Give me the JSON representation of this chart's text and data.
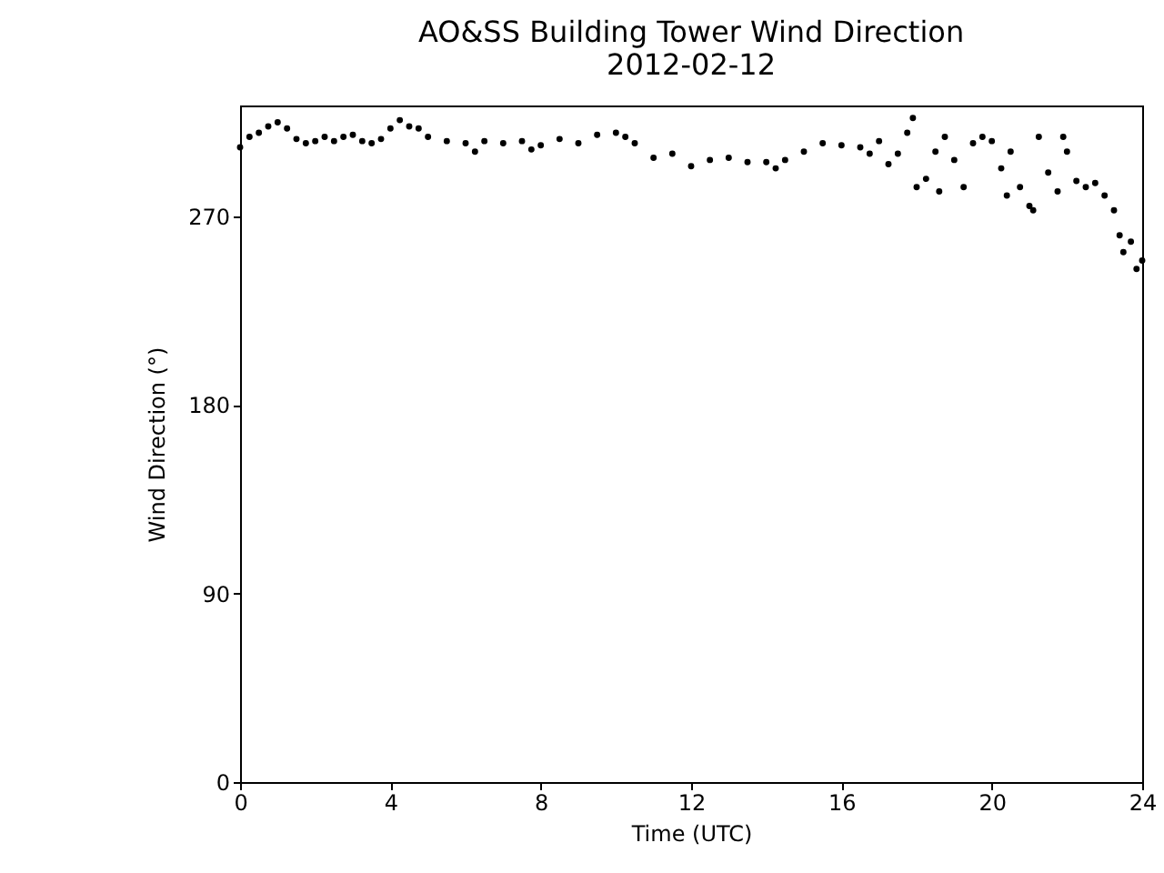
{
  "chart_data": {
    "type": "scatter",
    "title": "AO&SS Building Tower Wind Direction",
    "subtitle": "2012-02-12",
    "xlabel": "Time (UTC)",
    "ylabel": "Wind Direction (°)",
    "xlim": [
      0,
      24
    ],
    "xticks": [
      0,
      4,
      8,
      12,
      16,
      20,
      24
    ],
    "ylim": [
      0,
      323
    ],
    "yticks": [
      0,
      90,
      180,
      270
    ],
    "grid": false,
    "marker": "circle",
    "x": [
      0,
      0.25,
      0.5,
      0.75,
      1,
      1.25,
      1.5,
      1.75,
      2,
      2.25,
      2.5,
      2.75,
      3,
      3.25,
      3.5,
      3.75,
      4,
      4.25,
      4.5,
      4.75,
      5,
      5.5,
      6,
      6.25,
      6.5,
      7,
      7.5,
      7.75,
      8,
      8.5,
      9,
      9.5,
      10,
      10.25,
      10.5,
      11,
      11.5,
      12,
      12.5,
      13,
      13.5,
      14,
      14.25,
      14.5,
      15,
      15.5,
      16,
      16.5,
      16.75,
      17,
      17.25,
      17.5,
      17.75,
      17.9,
      18,
      18.25,
      18.5,
      18.6,
      18.75,
      19,
      19.25,
      19.5,
      19.75,
      20,
      20.25,
      20.4,
      20.5,
      20.75,
      21,
      21.1,
      21.25,
      21.5,
      21.75,
      21.9,
      22,
      22.25,
      22.5,
      22.75,
      23,
      23.25,
      23.4,
      23.5,
      23.7,
      23.85,
      24
    ],
    "series": [
      {
        "color": "#000000",
        "values": [
          303,
          308,
          310,
          313,
          315,
          312,
          307,
          305,
          306,
          308,
          306,
          308,
          309,
          306,
          305,
          307,
          312,
          316,
          313,
          312,
          308,
          306,
          305,
          301,
          306,
          305,
          306,
          302,
          304,
          307,
          305,
          309,
          310,
          308,
          305,
          298,
          300,
          294,
          297,
          298,
          296,
          296,
          293,
          297,
          301,
          305,
          304,
          303,
          300,
          306,
          295,
          300,
          310,
          317,
          284,
          288,
          301,
          282,
          308,
          297,
          284,
          305,
          308,
          306,
          293,
          280,
          301,
          284,
          275,
          273,
          308,
          291,
          282,
          308,
          301,
          287,
          284,
          286,
          280,
          273,
          261,
          253,
          258,
          245,
          249
        ]
      }
    ]
  }
}
